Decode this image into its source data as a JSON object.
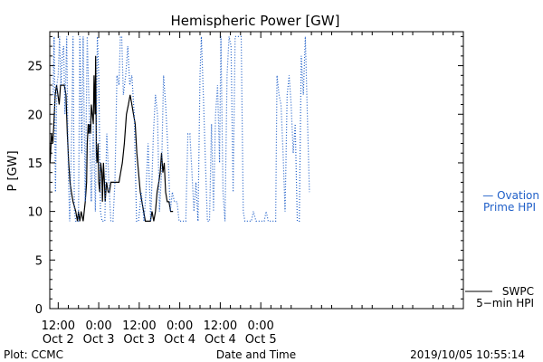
{
  "chart_data": {
    "type": "line",
    "title": "Hemispheric Power [GW]",
    "ylabel": "P [GW]",
    "xlabel": "Date and Time",
    "ylim": [
      0,
      28.5
    ],
    "xlim": [
      -2.5,
      120
    ],
    "x_unit": "hours since 2019-10-02 12:00 UT",
    "yticks": [
      0,
      5,
      10,
      15,
      20,
      25
    ],
    "xticks": [
      {
        "x": 0,
        "line1": "12:00",
        "line2": "Oct 2"
      },
      {
        "x": 12,
        "line1": "0:00",
        "line2": "Oct 3"
      },
      {
        "x": 24,
        "line1": "12:00",
        "line2": "Oct 3"
      },
      {
        "x": 36,
        "line1": "0:00",
        "line2": "Oct 4"
      },
      {
        "x": 48,
        "line1": "12:00",
        "line2": "Oct 4"
      },
      {
        "x": 60,
        "line1": "0:00",
        "line2": "Oct 5"
      }
    ],
    "grid": false,
    "footer": {
      "left": "Plot: CCMC",
      "right": "2019/10/05 10:55:14"
    },
    "series": [
      {
        "name": "SWPC 5-min HPI",
        "legend_lines": [
          "SWPC",
          "5−min HPI"
        ],
        "color": "#000000",
        "style": "solid",
        "points": [
          [
            -2.4,
            15
          ],
          [
            -2.0,
            18
          ],
          [
            -1.6,
            17
          ],
          [
            -1.3,
            19
          ],
          [
            -0.9,
            22
          ],
          [
            -0.5,
            23
          ],
          [
            -0.1,
            22
          ],
          [
            0.3,
            21
          ],
          [
            0.7,
            23
          ],
          [
            1.8,
            23
          ],
          [
            2.3,
            22
          ],
          [
            2.7,
            18
          ],
          [
            3.1,
            15
          ],
          [
            3.5,
            13
          ],
          [
            3.9,
            12
          ],
          [
            4.4,
            11
          ],
          [
            5.2,
            10
          ],
          [
            5.7,
            9
          ],
          [
            6.0,
            10
          ],
          [
            6.4,
            9
          ],
          [
            6.8,
            10
          ],
          [
            7.4,
            9
          ],
          [
            8.0,
            11
          ],
          [
            8.4,
            13
          ],
          [
            8.6,
            17
          ],
          [
            8.9,
            19
          ],
          [
            9.1,
            18
          ],
          [
            9.3,
            19
          ],
          [
            9.6,
            18
          ],
          [
            9.8,
            21
          ],
          [
            10.1,
            20
          ],
          [
            10.4,
            19
          ],
          [
            10.6,
            24
          ],
          [
            10.9,
            20
          ],
          [
            11.1,
            26
          ],
          [
            11.3,
            16
          ],
          [
            11.5,
            15
          ],
          [
            11.8,
            17
          ],
          [
            12.0,
            13
          ],
          [
            12.3,
            12
          ],
          [
            12.6,
            15
          ],
          [
            12.9,
            14
          ],
          [
            13.1,
            11
          ],
          [
            13.4,
            15
          ],
          [
            13.7,
            13
          ],
          [
            13.9,
            11
          ],
          [
            14.3,
            13
          ],
          [
            14.8,
            12
          ],
          [
            15.2,
            12
          ],
          [
            15.6,
            13
          ],
          [
            18.0,
            13
          ],
          [
            18.5,
            14
          ],
          [
            19.0,
            15
          ],
          [
            19.6,
            17
          ],
          [
            20.2,
            20
          ],
          [
            20.8,
            21
          ],
          [
            21.3,
            22
          ],
          [
            21.8,
            21
          ],
          [
            22.3,
            20
          ],
          [
            22.8,
            19
          ],
          [
            23.3,
            16
          ],
          [
            23.8,
            14
          ],
          [
            24.3,
            12
          ],
          [
            24.8,
            11
          ],
          [
            25.3,
            10
          ],
          [
            25.8,
            9
          ],
          [
            27.3,
            9
          ],
          [
            27.8,
            10
          ],
          [
            28.3,
            9
          ],
          [
            28.8,
            10
          ],
          [
            29.3,
            12
          ],
          [
            29.8,
            13
          ],
          [
            30.2,
            14
          ],
          [
            30.6,
            16
          ],
          [
            31.0,
            14
          ],
          [
            31.4,
            15
          ],
          [
            31.8,
            12
          ],
          [
            32.3,
            11
          ],
          [
            32.8,
            11
          ],
          [
            33.3,
            10
          ],
          [
            34.0,
            10
          ]
        ]
      },
      {
        "name": "Ovation Prime HPI",
        "legend_lines": [
          "— Ovation",
          "Prime HPI"
        ],
        "color": "#1f5fc8",
        "style": "dotted",
        "points": [
          [
            -1.5,
            22
          ],
          [
            -1.2,
            28
          ],
          [
            -0.8,
            12
          ],
          [
            -0.4,
            23
          ],
          [
            0.0,
            24
          ],
          [
            0.4,
            28
          ],
          [
            0.8,
            23
          ],
          [
            1.2,
            26
          ],
          [
            1.6,
            27
          ],
          [
            2.0,
            20
          ],
          [
            2.5,
            28
          ],
          [
            3.0,
            14
          ],
          [
            3.4,
            9
          ],
          [
            4.0,
            18
          ],
          [
            4.4,
            28
          ],
          [
            4.8,
            10
          ],
          [
            5.2,
            9
          ],
          [
            6.0,
            9
          ],
          [
            6.4,
            28
          ],
          [
            7.0,
            16
          ],
          [
            7.4,
            28
          ],
          [
            8.0,
            11
          ],
          [
            8.6,
            28
          ],
          [
            9.2,
            20
          ],
          [
            9.8,
            11
          ],
          [
            10.4,
            19
          ],
          [
            11.0,
            10
          ],
          [
            11.6,
            28
          ],
          [
            12.0,
            24
          ],
          [
            12.5,
            10
          ],
          [
            13.0,
            9
          ],
          [
            13.8,
            9
          ],
          [
            14.4,
            18
          ],
          [
            15.0,
            13
          ],
          [
            15.6,
            9
          ],
          [
            16.2,
            9
          ],
          [
            16.8,
            13
          ],
          [
            17.4,
            24
          ],
          [
            18.0,
            23
          ],
          [
            18.4,
            28
          ],
          [
            18.8,
            28
          ],
          [
            19.3,
            22
          ],
          [
            20.0,
            24
          ],
          [
            20.6,
            27
          ],
          [
            21.2,
            23
          ],
          [
            21.8,
            24
          ],
          [
            22.5,
            20
          ],
          [
            23.2,
            9
          ],
          [
            23.8,
            9
          ],
          [
            24.6,
            12
          ],
          [
            25.4,
            9
          ],
          [
            26.0,
            12
          ],
          [
            26.6,
            17
          ],
          [
            27.4,
            9
          ],
          [
            28.2,
            18
          ],
          [
            28.8,
            22
          ],
          [
            29.4,
            20
          ],
          [
            30.0,
            10
          ],
          [
            30.6,
            14
          ],
          [
            31.2,
            24
          ],
          [
            31.8,
            21
          ],
          [
            32.4,
            17
          ],
          [
            33.2,
            10
          ],
          [
            33.8,
            12
          ],
          [
            34.4,
            11
          ],
          [
            35.2,
            11
          ],
          [
            35.8,
            9
          ],
          [
            36.4,
            9
          ],
          [
            37.0,
            9
          ],
          [
            37.8,
            9
          ],
          [
            38.4,
            18
          ],
          [
            39.0,
            18
          ],
          [
            39.6,
            14
          ],
          [
            40.2,
            10
          ],
          [
            40.8,
            13
          ],
          [
            41.4,
            9
          ],
          [
            42.0,
            24
          ],
          [
            42.4,
            28
          ],
          [
            43.0,
            22
          ],
          [
            43.6,
            15
          ],
          [
            44.2,
            9
          ],
          [
            44.8,
            9
          ],
          [
            45.4,
            19
          ],
          [
            46.0,
            10
          ],
          [
            46.6,
            20
          ],
          [
            47.2,
            23
          ],
          [
            47.8,
            15
          ],
          [
            48.2,
            28
          ],
          [
            48.8,
            12
          ],
          [
            49.4,
            9
          ],
          [
            50.0,
            24
          ],
          [
            50.6,
            28
          ],
          [
            51.2,
            27
          ],
          [
            51.8,
            12
          ],
          [
            52.4,
            28
          ],
          [
            53.0,
            28
          ],
          [
            53.6,
            28
          ],
          [
            54.2,
            28
          ],
          [
            54.8,
            10
          ],
          [
            55.3,
            9
          ],
          [
            56.0,
            9
          ],
          [
            57.2,
            9
          ],
          [
            57.8,
            10
          ],
          [
            58.6,
            9
          ],
          [
            59.4,
            9
          ],
          [
            60.2,
            9
          ],
          [
            61.0,
            9
          ],
          [
            61.6,
            10
          ],
          [
            62.2,
            9
          ],
          [
            62.8,
            9
          ],
          [
            63.4,
            9
          ],
          [
            64.0,
            9
          ],
          [
            64.4,
            9
          ],
          [
            64.8,
            24
          ],
          [
            65.4,
            22
          ],
          [
            66.0,
            21
          ],
          [
            66.6,
            16
          ],
          [
            67.2,
            10
          ],
          [
            67.8,
            22
          ],
          [
            68.4,
            24
          ],
          [
            69.0,
            21
          ],
          [
            69.6,
            16
          ],
          [
            70.2,
            19
          ],
          [
            70.8,
            9
          ],
          [
            71.4,
            9
          ],
          [
            72.0,
            26
          ],
          [
            72.6,
            22
          ],
          [
            73.2,
            28
          ],
          [
            73.8,
            20
          ],
          [
            74.4,
            12
          ]
        ]
      }
    ]
  }
}
